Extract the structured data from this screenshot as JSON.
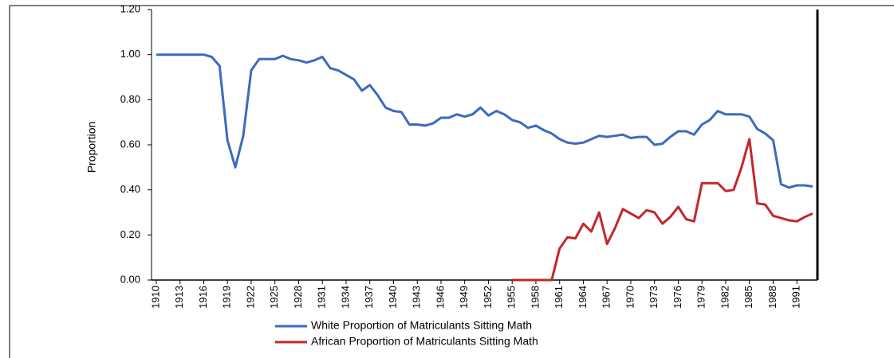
{
  "chart_data": {
    "type": "line",
    "ylabel": "Proportion",
    "x": [
      1910,
      1911,
      1912,
      1913,
      1914,
      1915,
      1916,
      1917,
      1918,
      1919,
      1920,
      1921,
      1922,
      1923,
      1924,
      1925,
      1926,
      1927,
      1928,
      1929,
      1930,
      1931,
      1932,
      1933,
      1934,
      1935,
      1936,
      1937,
      1938,
      1939,
      1940,
      1941,
      1942,
      1943,
      1944,
      1945,
      1946,
      1947,
      1948,
      1949,
      1950,
      1951,
      1952,
      1953,
      1954,
      1955,
      1956,
      1957,
      1958,
      1959,
      1960,
      1961,
      1962,
      1963,
      1964,
      1965,
      1966,
      1967,
      1968,
      1969,
      1970,
      1971,
      1972,
      1973,
      1974,
      1975,
      1976,
      1977,
      1978,
      1979,
      1980,
      1981,
      1982,
      1983,
      1984,
      1985,
      1986,
      1987,
      1988,
      1989,
      1990,
      1991,
      1992,
      1993
    ],
    "series": [
      {
        "name": "White Proportion of Matriculants Sitting Math",
        "color": "#3a6bbf",
        "values": [
          1.0,
          1.0,
          1.0,
          1.0,
          1.0,
          1.0,
          1.0,
          0.99,
          0.95,
          0.62,
          0.5,
          0.64,
          0.93,
          0.98,
          0.98,
          0.98,
          0.995,
          0.98,
          0.975,
          0.965,
          0.975,
          0.99,
          0.94,
          0.93,
          0.91,
          0.89,
          0.84,
          0.865,
          0.82,
          0.765,
          0.75,
          0.745,
          0.69,
          0.69,
          0.685,
          0.695,
          0.72,
          0.72,
          0.735,
          0.725,
          0.735,
          0.765,
          0.73,
          0.75,
          0.735,
          0.71,
          0.7,
          0.675,
          0.685,
          0.665,
          0.65,
          0.625,
          0.61,
          0.605,
          0.61,
          0.625,
          0.64,
          0.635,
          0.64,
          0.645,
          0.63,
          0.635,
          0.635,
          0.6,
          0.605,
          0.635,
          0.66,
          0.66,
          0.645,
          0.69,
          0.71,
          0.75,
          0.735,
          0.735,
          0.735,
          0.725,
          0.67,
          0.65,
          0.62,
          0.425,
          0.41,
          0.42,
          0.42,
          0.415
        ]
      },
      {
        "name": "African Proportion of Matriculants Sitting Math",
        "color": "#c0282d",
        "values": [
          null,
          null,
          null,
          null,
          null,
          null,
          null,
          null,
          null,
          null,
          null,
          null,
          null,
          null,
          null,
          null,
          null,
          null,
          null,
          null,
          null,
          null,
          null,
          null,
          null,
          null,
          null,
          null,
          null,
          null,
          null,
          null,
          null,
          null,
          null,
          null,
          null,
          null,
          null,
          null,
          null,
          null,
          null,
          null,
          null,
          0,
          0,
          0,
          0,
          0,
          0,
          0.14,
          0.19,
          0.185,
          0.25,
          0.215,
          0.3,
          0.16,
          0.23,
          0.315,
          0.295,
          0.275,
          0.31,
          0.3,
          0.25,
          0.28,
          0.325,
          0.27,
          0.26,
          0.43,
          0.43,
          0.43,
          0.395,
          0.4,
          0.5,
          0.625,
          0.34,
          0.335,
          0.285,
          0.275,
          0.265,
          0.26,
          0.28,
          0.295
        ]
      }
    ],
    "xlim": [
      1909.4,
      1993.6
    ],
    "xticks": [
      1910,
      1913,
      1916,
      1919,
      1922,
      1925,
      1928,
      1931,
      1934,
      1937,
      1940,
      1943,
      1946,
      1949,
      1952,
      1955,
      1958,
      1961,
      1964,
      1967,
      1970,
      1973,
      1976,
      1979,
      1982,
      1985,
      1988,
      1991
    ],
    "ylim": [
      0,
      1.2
    ],
    "yticks": [
      {
        "value": 0,
        "label": "0.00"
      },
      {
        "value": 0.2,
        "label": "0.20"
      },
      {
        "value": 0.4,
        "label": "0.40"
      },
      {
        "value": 0.6,
        "label": "0.60"
      },
      {
        "value": 0.8,
        "label": "0.80"
      },
      {
        "value": 1.0,
        "label": "1.00"
      },
      {
        "value": 1.2,
        "label": "1.20"
      }
    ]
  }
}
